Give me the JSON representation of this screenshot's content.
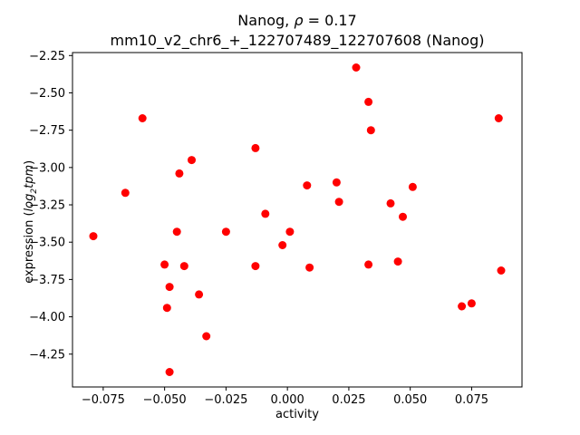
{
  "chart_data": {
    "type": "scatter",
    "title": "Nanog, ρ = 0.17",
    "title_parts": {
      "prefix": "Nanog, ",
      "rho": "ρ",
      "suffix": " = 0.17"
    },
    "subtitle": "mm10_v2_chr6_+_122707489_122707608 (Nanog)",
    "xlabel": "activity",
    "ylabel": "expression (log2tpm)",
    "ylabel_parts": {
      "prefix": "expression (",
      "func": "log",
      "sub": "2",
      "var": "tpm",
      "suffix": ")"
    },
    "marker_color": "#ff0000",
    "axis_color": "#000000",
    "xlim": [
      -0.0875,
      0.0955
    ],
    "ylim": [
      -4.47,
      -2.23
    ],
    "grid": false,
    "legend": "none",
    "xticks": [
      {
        "v": -0.075,
        "label": "−0.075"
      },
      {
        "v": -0.05,
        "label": "−0.050"
      },
      {
        "v": -0.025,
        "label": "−0.025"
      },
      {
        "v": 0.0,
        "label": "0.000"
      },
      {
        "v": 0.025,
        "label": "0.025"
      },
      {
        "v": 0.05,
        "label": "0.050"
      },
      {
        "v": 0.075,
        "label": "0.075"
      }
    ],
    "yticks": [
      {
        "v": -2.25,
        "label": "−2.25"
      },
      {
        "v": -2.5,
        "label": "−2.50"
      },
      {
        "v": -2.75,
        "label": "−2.75"
      },
      {
        "v": -3.0,
        "label": "−3.00"
      },
      {
        "v": -3.25,
        "label": "−3.25"
      },
      {
        "v": -3.5,
        "label": "−3.50"
      },
      {
        "v": -3.75,
        "label": "−3.75"
      },
      {
        "v": -4.0,
        "label": "−4.00"
      },
      {
        "v": -4.25,
        "label": "−4.25"
      }
    ],
    "points": [
      [
        -0.079,
        -3.46
      ],
      [
        -0.066,
        -3.17
      ],
      [
        -0.059,
        -2.67
      ],
      [
        -0.05,
        -3.65
      ],
      [
        -0.048,
        -3.8
      ],
      [
        -0.049,
        -3.94
      ],
      [
        -0.048,
        -4.37
      ],
      [
        -0.045,
        -3.43
      ],
      [
        -0.044,
        -3.04
      ],
      [
        -0.042,
        -3.66
      ],
      [
        -0.039,
        -2.95
      ],
      [
        -0.036,
        -3.85
      ],
      [
        -0.033,
        -4.13
      ],
      [
        -0.025,
        -3.43
      ],
      [
        -0.013,
        -2.87
      ],
      [
        -0.013,
        -3.66
      ],
      [
        -0.009,
        -3.31
      ],
      [
        -0.002,
        -3.52
      ],
      [
        0.001,
        -3.43
      ],
      [
        0.008,
        -3.12
      ],
      [
        0.009,
        -3.67
      ],
      [
        0.02,
        -3.1
      ],
      [
        0.021,
        -3.23
      ],
      [
        0.028,
        -2.33
      ],
      [
        0.033,
        -2.56
      ],
      [
        0.034,
        -2.75
      ],
      [
        0.033,
        -3.65
      ],
      [
        0.042,
        -3.24
      ],
      [
        0.045,
        -3.63
      ],
      [
        0.047,
        -3.33
      ],
      [
        0.051,
        -3.13
      ],
      [
        0.071,
        -3.93
      ],
      [
        0.075,
        -3.91
      ],
      [
        0.086,
        -2.67
      ],
      [
        0.087,
        -3.69
      ]
    ]
  }
}
